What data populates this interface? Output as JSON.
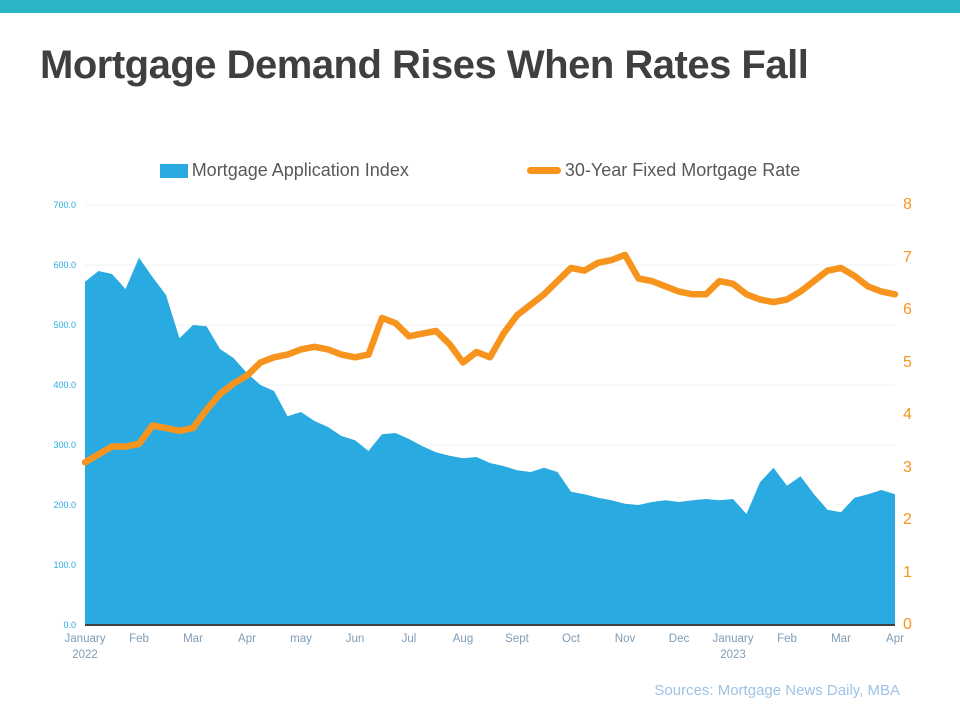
{
  "header": {
    "accent_bar_color": "#2AB5C6",
    "title": "Mortgage Demand Rises When Rates Fall",
    "title_color": "#3F3F3F"
  },
  "legend": {
    "items": [
      {
        "label": "Mortgage Application Index",
        "swatch_color": "#29ABE2",
        "swatch_type": "square"
      },
      {
        "label": "30-Year Fixed Mortgage Rate",
        "swatch_color": "#F7941E",
        "swatch_type": "line"
      }
    ]
  },
  "footer": {
    "source": "Sources: Mortgage News Daily, MBA",
    "source_color": "#9DC3E6"
  },
  "chart_data": {
    "type": "area",
    "title": "Mortgage Demand Rises When Rates Fall",
    "x_tick_labels": [
      "January\n2022",
      "Feb",
      "Mar",
      "Apr",
      "may",
      "Jun",
      "Jul",
      "Aug",
      "Sept",
      "Oct",
      "Nov",
      "Dec",
      "January\n2023",
      "Feb",
      "Mar",
      "Apr"
    ],
    "points_per_month": 4,
    "grid": true,
    "grid_color": "#F0F0F0",
    "axis_line_color": "#3F3F3F",
    "x_label_color": "#7F9CB5",
    "left_axis": {
      "title": "Mortgage Application Index",
      "min": 0,
      "max": 700,
      "ticks": [
        "0.0",
        "100.0",
        "200.0",
        "300.0",
        "400.0",
        "500.0",
        "600.0",
        "700.0"
      ],
      "label_color": "#29ABE2"
    },
    "right_axis": {
      "title": "30-Year Fixed Mortgage Rate",
      "min": 0,
      "max": 8,
      "ticks": [
        "0",
        "1",
        "2",
        "3",
        "4",
        "5",
        "6",
        "7",
        "8"
      ],
      "label_color": "#F7941E"
    },
    "series": [
      {
        "name": "Mortgage Application Index",
        "type": "area",
        "axis": "left",
        "color": "#29ABE2",
        "values": [
          572,
          590,
          585,
          560,
          612,
          580,
          550,
          478,
          500,
          498,
          460,
          445,
          420,
          400,
          390,
          348,
          355,
          340,
          330,
          315,
          308,
          290,
          318,
          320,
          310,
          298,
          288,
          282,
          278,
          280,
          270,
          265,
          258,
          255,
          262,
          255,
          222,
          218,
          212,
          208,
          202,
          200,
          205,
          208,
          205,
          208,
          210,
          208,
          210,
          185,
          238,
          262,
          232,
          248,
          218,
          192,
          188,
          212,
          218,
          225,
          218
        ]
      },
      {
        "name": "30-Year Fixed Mortgage Rate",
        "type": "line",
        "axis": "right",
        "color": "#F7941E",
        "values": [
          3.1,
          3.25,
          3.4,
          3.4,
          3.45,
          3.8,
          3.75,
          3.7,
          3.75,
          4.1,
          4.4,
          4.6,
          4.75,
          5.0,
          5.1,
          5.15,
          5.25,
          5.3,
          5.25,
          5.15,
          5.1,
          5.15,
          5.85,
          5.75,
          5.5,
          5.55,
          5.6,
          5.35,
          5.0,
          5.2,
          5.1,
          5.55,
          5.9,
          6.1,
          6.3,
          6.55,
          6.8,
          6.75,
          6.9,
          6.95,
          7.05,
          6.6,
          6.55,
          6.45,
          6.35,
          6.3,
          6.3,
          6.55,
          6.5,
          6.3,
          6.2,
          6.15,
          6.2,
          6.35,
          6.55,
          6.75,
          6.8,
          6.65,
          6.45,
          6.35,
          6.3
        ]
      }
    ]
  }
}
